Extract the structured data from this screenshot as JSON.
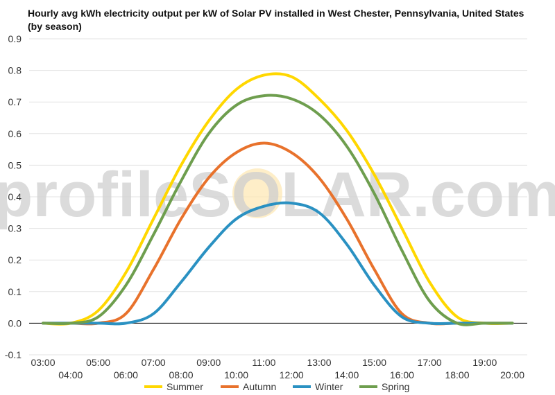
{
  "chart_data": {
    "type": "line",
    "title": "Hourly avg kWh electricity output per kW of Solar PV installed in West Chester, Pennsylvania, United States (by season)",
    "xlabel": "",
    "ylabel": "",
    "ylim": [
      -0.1,
      0.9
    ],
    "yticks": [
      "-0.1",
      "0.0",
      "0.1",
      "0.2",
      "0.3",
      "0.4",
      "0.5",
      "0.6",
      "0.7",
      "0.8",
      "0.9"
    ],
    "x": [
      "03:00",
      "04:00",
      "05:00",
      "06:00",
      "07:00",
      "08:00",
      "09:00",
      "10:00",
      "11:00",
      "12:00",
      "13:00",
      "14:00",
      "15:00",
      "16:00",
      "17:00",
      "18:00",
      "19:00",
      "20:00"
    ],
    "grid": true,
    "legend_position": "bottom",
    "watermark": "profileSOLAR.com",
    "series": [
      {
        "name": "Summer",
        "color": "#FFD700",
        "values": [
          0.0,
          0.0,
          0.04,
          0.16,
          0.33,
          0.5,
          0.64,
          0.74,
          0.785,
          0.78,
          0.71,
          0.61,
          0.47,
          0.3,
          0.13,
          0.02,
          0.0,
          0.0
        ]
      },
      {
        "name": "Autumn",
        "color": "#E8722C",
        "values": [
          0.0,
          0.0,
          0.0,
          0.03,
          0.17,
          0.33,
          0.46,
          0.54,
          0.57,
          0.54,
          0.46,
          0.33,
          0.17,
          0.03,
          0.0,
          0.0,
          0.0,
          0.0
        ]
      },
      {
        "name": "Winter",
        "color": "#2A91C2",
        "values": [
          0.0,
          0.0,
          0.0,
          0.0,
          0.03,
          0.13,
          0.24,
          0.33,
          0.37,
          0.38,
          0.35,
          0.25,
          0.12,
          0.02,
          0.0,
          0.0,
          0.0,
          0.0
        ]
      },
      {
        "name": "Spring",
        "color": "#6E9E4E",
        "values": [
          0.0,
          0.0,
          0.02,
          0.12,
          0.28,
          0.45,
          0.6,
          0.69,
          0.72,
          0.71,
          0.66,
          0.56,
          0.41,
          0.23,
          0.07,
          0.0,
          0.0,
          0.0
        ]
      }
    ]
  }
}
